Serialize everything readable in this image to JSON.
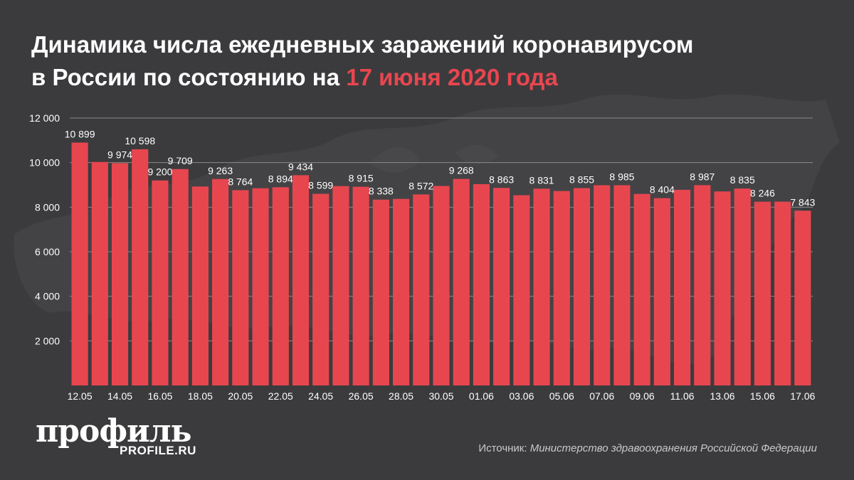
{
  "title": {
    "line1": "Динамика числа ежедневных заражений коронавирусом",
    "line2_prefix": "в России по состоянию на ",
    "line2_accent": "17 июня 2020 года"
  },
  "logo": {
    "name": "профиль",
    "url_text": "PROFILE.RU"
  },
  "source": {
    "label": "Источник: ",
    "text": "Министерство здравоохранения Российской Федерации"
  },
  "colors": {
    "background": "#3b3b3d",
    "bar": "#e8464f",
    "accent": "#e8464f",
    "text": "#ffffff",
    "grid": "#8a8a8c"
  },
  "chart_data": {
    "type": "bar",
    "title": "Динамика числа ежедневных заражений коронавирусом в России по состоянию на 17 июня 2020 года",
    "xlabel": "",
    "ylabel": "",
    "ylim": [
      0,
      12000
    ],
    "yticks": [
      2000,
      4000,
      6000,
      8000,
      10000,
      12000
    ],
    "ytick_labels": [
      "2 000",
      "4 000",
      "6 000",
      "8 000",
      "10 000",
      "12 000"
    ],
    "grid": true,
    "categories": [
      "12.05",
      "13.05",
      "14.05",
      "15.05",
      "16.05",
      "17.05",
      "18.05",
      "19.05",
      "20.05",
      "21.05",
      "22.05",
      "23.05",
      "24.05",
      "25.05",
      "26.05",
      "27.05",
      "28.05",
      "29.05",
      "30.05",
      "31.05",
      "01.06",
      "02.06",
      "03.06",
      "04.06",
      "05.06",
      "06.06",
      "07.06",
      "08.06",
      "09.06",
      "10.06",
      "11.06",
      "12.06",
      "13.06",
      "14.06",
      "15.06",
      "16.06",
      "17.06"
    ],
    "x_tick_labels": [
      "12.05",
      "14.05",
      "16.05",
      "18.05",
      "20.05",
      "22.05",
      "24.05",
      "26.05",
      "28.05",
      "30.05",
      "01.06",
      "03.06",
      "05.06",
      "07.06",
      "09.06",
      "11.06",
      "13.06",
      "15.06",
      "17.06"
    ],
    "values": [
      10899,
      10028,
      9974,
      10598,
      9200,
      9709,
      8926,
      9263,
      8764,
      8849,
      8894,
      9434,
      8599,
      8946,
      8915,
      8338,
      8371,
      8572,
      8952,
      9268,
      9035,
      8863,
      8536,
      8831,
      8726,
      8855,
      8984,
      8985,
      8595,
      8404,
      8779,
      8987,
      8706,
      8835,
      8246,
      8248,
      7843
    ],
    "data_labels": [
      {
        "index": 0,
        "text": "10 899"
      },
      {
        "index": 2,
        "text": "9 974"
      },
      {
        "index": 3,
        "text": "10 598"
      },
      {
        "index": 4,
        "text": "9 200"
      },
      {
        "index": 5,
        "text": "9 709"
      },
      {
        "index": 7,
        "text": "9 263"
      },
      {
        "index": 8,
        "text": "8 764"
      },
      {
        "index": 10,
        "text": "8 894"
      },
      {
        "index": 11,
        "text": "9 434"
      },
      {
        "index": 12,
        "text": "8 599"
      },
      {
        "index": 14,
        "text": "8 915"
      },
      {
        "index": 15,
        "text": "8 338"
      },
      {
        "index": 17,
        "text": "8 572"
      },
      {
        "index": 19,
        "text": "9 268"
      },
      {
        "index": 21,
        "text": "8 863"
      },
      {
        "index": 23,
        "text": "8 831"
      },
      {
        "index": 25,
        "text": "8 855"
      },
      {
        "index": 27,
        "text": "8 985"
      },
      {
        "index": 29,
        "text": "8 404"
      },
      {
        "index": 31,
        "text": "8 987"
      },
      {
        "index": 33,
        "text": "8 835"
      },
      {
        "index": 34,
        "text": "8 246"
      },
      {
        "index": 36,
        "text": "7 843"
      }
    ]
  }
}
